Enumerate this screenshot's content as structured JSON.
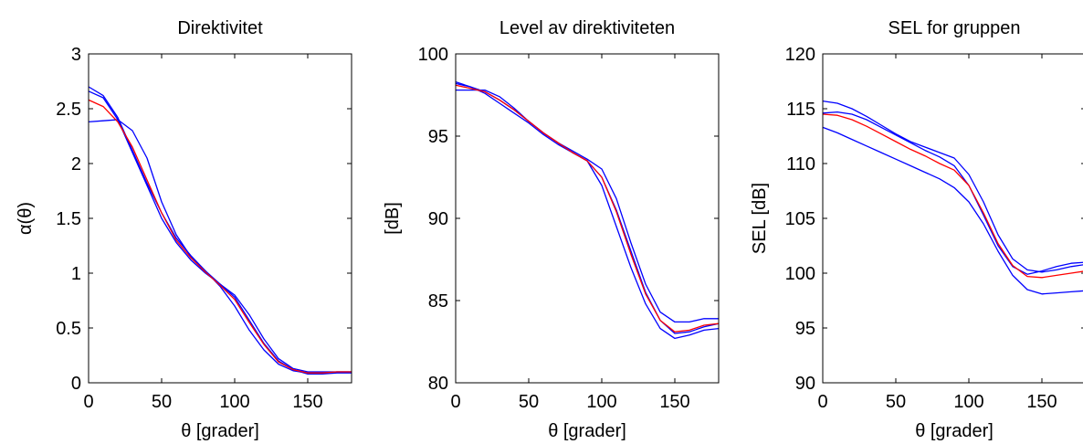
{
  "chart_data": [
    {
      "type": "line",
      "title": "Direktivitet",
      "xlabel": "θ [grader]",
      "ylabel": "α(θ)",
      "x": [
        0,
        10,
        20,
        30,
        40,
        50,
        60,
        70,
        80,
        90,
        100,
        110,
        120,
        130,
        140,
        150,
        160,
        170,
        180
      ],
      "xlim": [
        0,
        180
      ],
      "xticks": [
        0,
        50,
        100,
        150
      ],
      "ylim": [
        0,
        3
      ],
      "yticks": [
        0,
        0.5,
        1,
        1.5,
        2,
        2.5,
        3
      ],
      "series": [
        {
          "color": "#0000ff",
          "values": [
            2.7,
            2.62,
            2.42,
            2.12,
            1.82,
            1.55,
            1.32,
            1.16,
            1.02,
            0.88,
            0.7,
            0.48,
            0.3,
            0.17,
            0.11,
            0.09,
            0.09,
            0.1,
            0.1
          ]
        },
        {
          "color": "#0000ff",
          "values": [
            2.66,
            2.6,
            2.4,
            2.1,
            1.8,
            1.5,
            1.28,
            1.12,
            1.0,
            0.9,
            0.78,
            0.57,
            0.36,
            0.2,
            0.12,
            0.08,
            0.08,
            0.09,
            0.09
          ]
        },
        {
          "color": "#0000ff",
          "values": [
            2.38,
            2.39,
            2.4,
            2.3,
            2.05,
            1.65,
            1.35,
            1.15,
            1.02,
            0.9,
            0.8,
            0.62,
            0.4,
            0.22,
            0.13,
            0.1,
            0.1,
            0.1,
            0.1
          ]
        },
        {
          "color": "#ff0000",
          "values": [
            2.58,
            2.52,
            2.38,
            2.15,
            1.85,
            1.55,
            1.3,
            1.14,
            1.01,
            0.89,
            0.76,
            0.55,
            0.35,
            0.19,
            0.12,
            0.09,
            0.09,
            0.1,
            0.1
          ]
        }
      ]
    },
    {
      "type": "line",
      "title": "Level av direktiviteten",
      "xlabel": "θ [grader]",
      "ylabel": "[dB]",
      "x": [
        0,
        10,
        20,
        30,
        40,
        50,
        60,
        70,
        80,
        90,
        100,
        110,
        120,
        130,
        140,
        150,
        160,
        170,
        180
      ],
      "xlim": [
        0,
        180
      ],
      "xticks": [
        0,
        50,
        100,
        150
      ],
      "ylim": [
        80,
        100
      ],
      "yticks": [
        80,
        85,
        90,
        95,
        100
      ],
      "series": [
        {
          "color": "#0000ff",
          "values": [
            98.3,
            98.0,
            97.6,
            97.0,
            96.4,
            95.8,
            95.1,
            94.5,
            94.0,
            93.5,
            92.5,
            90.5,
            88.0,
            85.5,
            83.8,
            83.0,
            83.1,
            83.4,
            83.6
          ]
        },
        {
          "color": "#0000ff",
          "values": [
            98.2,
            98.0,
            97.7,
            97.2,
            96.6,
            95.9,
            95.2,
            94.6,
            94.1,
            93.6,
            93.0,
            91.2,
            88.5,
            86.0,
            84.3,
            83.7,
            83.7,
            83.9,
            83.9
          ]
        },
        {
          "color": "#0000ff",
          "values": [
            97.8,
            97.8,
            97.8,
            97.4,
            96.7,
            95.9,
            95.2,
            94.6,
            94.0,
            93.5,
            92.0,
            89.5,
            87.0,
            84.8,
            83.3,
            82.7,
            82.9,
            83.2,
            83.3
          ]
        },
        {
          "color": "#ff0000",
          "values": [
            98.1,
            97.9,
            97.7,
            97.2,
            96.6,
            95.9,
            95.2,
            94.6,
            94.0,
            93.5,
            92.5,
            90.4,
            87.8,
            85.4,
            83.8,
            83.1,
            83.2,
            83.5,
            83.6
          ]
        }
      ]
    },
    {
      "type": "line",
      "title": "SEL for gruppen",
      "xlabel": "θ [grader]",
      "ylabel": "SEL [dB]",
      "x": [
        0,
        10,
        20,
        30,
        40,
        50,
        60,
        70,
        80,
        90,
        100,
        110,
        120,
        130,
        140,
        150,
        160,
        170,
        180
      ],
      "xlim": [
        0,
        180
      ],
      "xticks": [
        0,
        50,
        100,
        150
      ],
      "ylim": [
        90,
        120
      ],
      "yticks": [
        90,
        95,
        100,
        105,
        110,
        115,
        120
      ],
      "series": [
        {
          "color": "#0000ff",
          "values": [
            115.7,
            115.5,
            115.0,
            114.3,
            113.5,
            112.7,
            112.0,
            111.5,
            111.0,
            110.5,
            109.0,
            106.5,
            103.5,
            101.3,
            100.3,
            100.1,
            100.3,
            100.6,
            100.8
          ]
        },
        {
          "color": "#0000ff",
          "values": [
            113.3,
            112.8,
            112.2,
            111.6,
            111.0,
            110.4,
            109.8,
            109.2,
            108.6,
            107.8,
            106.5,
            104.5,
            102.0,
            99.8,
            98.5,
            98.1,
            98.2,
            98.3,
            98.4
          ]
        },
        {
          "color": "#0000ff",
          "values": [
            114.6,
            114.7,
            114.5,
            114.0,
            113.3,
            112.6,
            111.9,
            111.2,
            110.6,
            109.8,
            108.0,
            105.3,
            102.5,
            100.6,
            99.9,
            100.2,
            100.6,
            100.9,
            101.0
          ]
        },
        {
          "color": "#ff0000",
          "values": [
            114.5,
            114.4,
            114.0,
            113.4,
            112.7,
            112.0,
            111.3,
            110.7,
            110.0,
            109.4,
            108.0,
            105.5,
            102.7,
            100.7,
            99.7,
            99.6,
            99.8,
            100.0,
            100.2
          ]
        }
      ]
    }
  ]
}
